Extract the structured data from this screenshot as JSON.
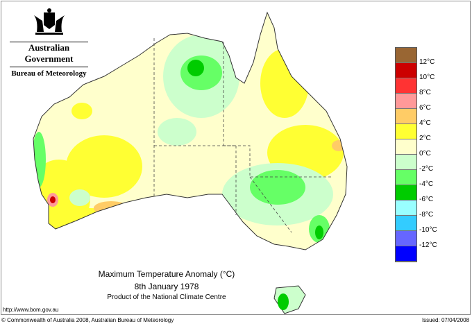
{
  "header": {
    "government": "Australian Government",
    "bureau": "Bureau of Meteorology",
    "logo": "coat-of-arms"
  },
  "map": {
    "title": "Maximum Temperature Anomaly (°C)",
    "date": "8th January 1978",
    "product": "Product of the National Climate Centre"
  },
  "legend": {
    "colors": [
      "#996633",
      "#cc0000",
      "#ff3333",
      "#ff9999",
      "#ffcc66",
      "#ffff33",
      "#ffffcc",
      "#ccffcc",
      "#66ff66",
      "#00cc00",
      "#99ffff",
      "#33ccff",
      "#6666ff",
      "#0000ff"
    ],
    "labels": [
      "12°C",
      "10°C",
      "8°C",
      "6°C",
      "4°C",
      "2°C",
      "0°C",
      "-2°C",
      "-4°C",
      "-6°C",
      "-8°C",
      "-10°C",
      "-12°C"
    ]
  },
  "footer": {
    "url": "http://www.bom.gov.au",
    "copyright": "© Commonwealth of Australia 2008, Australian Bureau of Meteorology",
    "issued": "Issued: 07/04/2008"
  }
}
